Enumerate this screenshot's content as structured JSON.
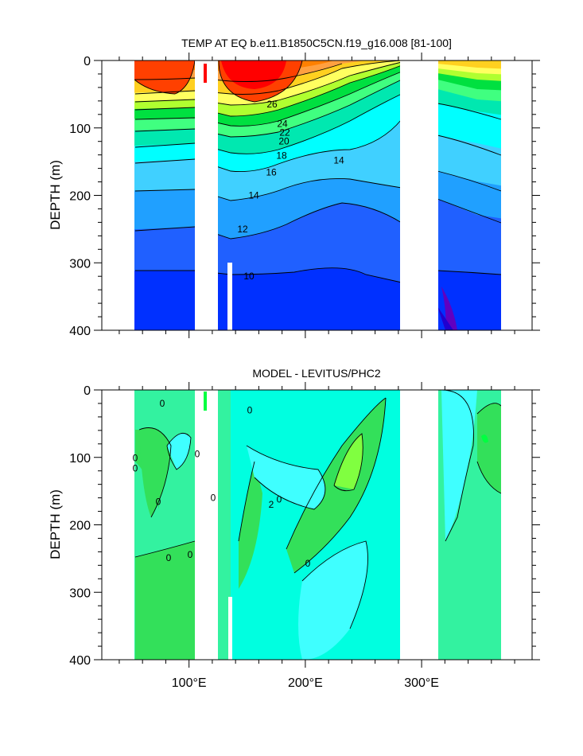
{
  "colors": {
    "white": "#ffffff",
    "red": "#ff0000",
    "redorange": "#ff4000",
    "orange1": "#ff8000",
    "orange2": "#ffa040",
    "gold": "#ffd020",
    "yellow": "#ffff60",
    "yellowgreen": "#b0ff30",
    "green": "#00e040",
    "lightgreen": "#40ff80",
    "teal": "#00e8b0",
    "cyan": "#00ffff",
    "skyblue": "#40d0ff",
    "azure": "#20a0ff",
    "blue": "#2060ff",
    "deepblue": "#0030ff",
    "navy": "#2000d0",
    "purple": "#6000c0",
    "diff_green": "#33e05a",
    "diff_seagreen": "#33f2a0",
    "diff_aqua": "#00ffe0",
    "diff_cyan": "#3fffff",
    "diff_lime": "#80ff40",
    "diff_brightgreen": "#00ff40"
  },
  "chart_data": [
    {
      "type": "contour",
      "title": "TEMP AT EQ b.e11.B1850C5CN.f19_g16.008 [81-100]",
      "xlabel": "",
      "ylabel": "DEPTH (m)",
      "xlim": [
        25,
        395
      ],
      "ylim": [
        400,
        0
      ],
      "x_ticks": [
        {
          "value": 100,
          "label": ""
        },
        {
          "value": 200,
          "label": ""
        },
        {
          "value": 300,
          "label": ""
        }
      ],
      "y_ticks": [
        {
          "value": 0,
          "label": "0"
        },
        {
          "value": 100,
          "label": "100"
        },
        {
          "value": 200,
          "label": "200"
        },
        {
          "value": 300,
          "label": "300"
        },
        {
          "value": 400,
          "label": "400"
        }
      ],
      "contour_labels": [
        {
          "text": "26",
          "x": 172,
          "depth": 65
        },
        {
          "text": "24",
          "x": 185,
          "depth": 94
        },
        {
          "text": "22",
          "x": 188,
          "depth": 107
        },
        {
          "text": "20",
          "x": 187,
          "depth": 120
        },
        {
          "text": "18",
          "x": 184,
          "depth": 141
        },
        {
          "text": "16",
          "x": 171,
          "depth": 166
        },
        {
          "text": "14",
          "x": 256,
          "depth": 148
        },
        {
          "text": "14",
          "x": 149,
          "depth": 200
        },
        {
          "text": "12",
          "x": 135,
          "depth": 250
        },
        {
          "text": "10",
          "x": 143,
          "depth": 320
        }
      ],
      "annotations": []
    },
    {
      "type": "contour",
      "title": "MODEL - LEVITUS/PHC2",
      "xlabel": "",
      "ylabel": "DEPTH (m)",
      "xlim": [
        25,
        395
      ],
      "ylim": [
        400,
        0
      ],
      "x_ticks": [
        {
          "value": 100,
          "label": "100°E"
        },
        {
          "value": 200,
          "label": "200°E"
        },
        {
          "value": 300,
          "label": "300°E"
        }
      ],
      "y_ticks": [
        {
          "value": 0,
          "label": "0"
        },
        {
          "value": 100,
          "label": "100"
        },
        {
          "value": 200,
          "label": "200"
        },
        {
          "value": 300,
          "label": "300"
        },
        {
          "value": 400,
          "label": "400"
        }
      ],
      "contour_labels": [
        {
          "text": "0",
          "x": 0,
          "depth": 101
        },
        {
          "text": "0",
          "x": 0,
          "depth": 116
        },
        {
          "text": "0",
          "x": 34,
          "depth": 20
        },
        {
          "text": "0",
          "x": 29,
          "depth": 166
        },
        {
          "text": "0",
          "x": 42,
          "depth": 249
        },
        {
          "text": "0",
          "x": 69,
          "depth": 244
        },
        {
          "text": "0",
          "x": 78,
          "depth": 95
        },
        {
          "text": "0",
          "x": 98,
          "depth": 160
        },
        {
          "text": "0",
          "x": 144,
          "depth": 30
        },
        {
          "text": "2",
          "x": 171,
          "depth": 170
        },
        {
          "text": "0",
          "x": 181,
          "depth": 162
        },
        {
          "text": "0",
          "x": 217,
          "depth": 257
        }
      ],
      "annotations": []
    }
  ]
}
